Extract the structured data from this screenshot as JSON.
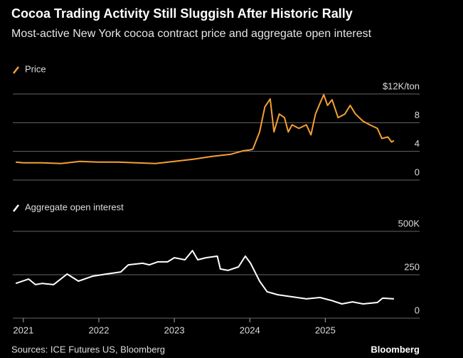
{
  "title": "Cocoa Trading Activity Still Sluggish After Historic Rally",
  "subtitle": "Most-active New York cocoa contract price and aggregate open interest",
  "source": "Sources: ICE Futures US, Bloomberg",
  "logo": "Bloomberg",
  "chart_data": [
    {
      "type": "line",
      "series": [
        {
          "name": "Price",
          "color": "#f5a033",
          "x": [
            2020.9,
            2021.0,
            2021.25,
            2021.5,
            2021.75,
            2022.0,
            2022.25,
            2022.5,
            2022.75,
            2023.0,
            2023.25,
            2023.5,
            2023.75,
            2023.92,
            2024.0,
            2024.04,
            2024.13,
            2024.2,
            2024.27,
            2024.32,
            2024.39,
            2024.46,
            2024.51,
            2024.56,
            2024.65,
            2024.75,
            2024.81,
            2024.87,
            2024.93,
            2024.98,
            2025.03,
            2025.09,
            2025.17,
            2025.26,
            2025.33,
            2025.4,
            2025.5,
            2025.59,
            2025.69,
            2025.75,
            2025.83,
            2025.88,
            2025.91
          ],
          "values": [
            2.5,
            2.4,
            2.4,
            2.3,
            2.6,
            2.5,
            2.5,
            2.4,
            2.3,
            2.6,
            2.9,
            3.3,
            3.6,
            4.1,
            4.2,
            4.3,
            6.7,
            10.2,
            11.3,
            6.7,
            9.2,
            8.7,
            6.7,
            7.7,
            7.2,
            7.7,
            6.3,
            9.2,
            10.7,
            11.9,
            10.4,
            11.2,
            8.7,
            9.2,
            10.4,
            9.2,
            8.2,
            7.7,
            7.2,
            5.8,
            6.0,
            5.3,
            5.5
          ]
        }
      ],
      "xlim": [
        2020.86,
        2026.25
      ],
      "ylim": [
        0,
        12
      ],
      "yticks": [
        0,
        4,
        8,
        {
          "value": 12,
          "label": "$12K/ton"
        }
      ],
      "grid": true
    },
    {
      "type": "line",
      "series": [
        {
          "name": "Aggregate open interest",
          "color": "#ffffff",
          "x": [
            2020.9,
            2021.07,
            2021.16,
            2021.25,
            2021.4,
            2021.58,
            2021.73,
            2021.92,
            2022.1,
            2022.29,
            2022.39,
            2022.58,
            2022.67,
            2022.78,
            2022.91,
            2023.0,
            2023.14,
            2023.24,
            2023.31,
            2023.42,
            2023.57,
            2023.61,
            2023.71,
            2023.85,
            2023.94,
            2024.01,
            2024.13,
            2024.23,
            2024.37,
            2024.56,
            2024.75,
            2024.93,
            2025.08,
            2025.22,
            2025.36,
            2025.5,
            2025.69,
            2025.76,
            2025.91
          ],
          "values": [
            200,
            225,
            193,
            200,
            193,
            254,
            213,
            242,
            254,
            266,
            307,
            316,
            307,
            324,
            324,
            348,
            336,
            389,
            336,
            348,
            357,
            283,
            275,
            295,
            357,
            316,
            213,
            152,
            135,
            123,
            111,
            119,
            102,
            82,
            94,
            82,
            90,
            115,
            111
          ]
        }
      ],
      "xlim": [
        2020.86,
        2026.25
      ],
      "xticks": [
        2021,
        2022,
        2023,
        2024,
        2025
      ],
      "ylim": [
        0,
        500
      ],
      "yticks": [
        0,
        250,
        {
          "value": 500,
          "label": "500K"
        }
      ],
      "grid": true
    }
  ]
}
